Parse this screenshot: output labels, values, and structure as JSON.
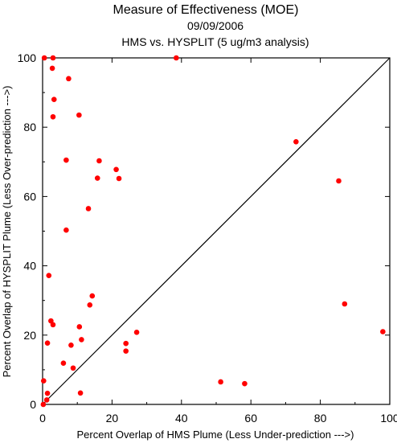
{
  "chart_data": {
    "type": "scatter",
    "title": "Measure of Effectiveness (MOE)",
    "date": "09/09/2006",
    "subtitle": "HMS vs. HYSPLIT  (5 ug/m3 analysis)",
    "xlabel": "Percent Overlap of HMS Plume (Less Under-prediction --->)",
    "ylabel": "Percent Overlap of HYSPLIT Plume (Less Over-prediction --->)",
    "xlim": [
      0,
      100
    ],
    "ylim": [
      0,
      100
    ],
    "xticks": [
      0,
      20,
      40,
      60,
      80,
      100
    ],
    "yticks": [
      0,
      20,
      40,
      60,
      80,
      100
    ],
    "reference_line": "y = x",
    "point_color": "#ff0000",
    "points": [
      {
        "x": 0.5,
        "y": 100
      },
      {
        "x": 3.0,
        "y": 100
      },
      {
        "x": 38.5,
        "y": 100
      },
      {
        "x": 2.8,
        "y": 97
      },
      {
        "x": 7.5,
        "y": 94
      },
      {
        "x": 3.3,
        "y": 88
      },
      {
        "x": 3.0,
        "y": 83
      },
      {
        "x": 10.5,
        "y": 83.5
      },
      {
        "x": 73.0,
        "y": 75.8
      },
      {
        "x": 6.8,
        "y": 70.5
      },
      {
        "x": 16.3,
        "y": 70.3
      },
      {
        "x": 21.2,
        "y": 67.8
      },
      {
        "x": 15.8,
        "y": 65.3
      },
      {
        "x": 22.0,
        "y": 65.2
      },
      {
        "x": 85.3,
        "y": 64.5
      },
      {
        "x": 13.2,
        "y": 56.5
      },
      {
        "x": 6.8,
        "y": 50.3
      },
      {
        "x": 1.8,
        "y": 37.2
      },
      {
        "x": 14.3,
        "y": 31.3
      },
      {
        "x": 13.6,
        "y": 28.7
      },
      {
        "x": 87.0,
        "y": 29.0
      },
      {
        "x": 2.4,
        "y": 24.1
      },
      {
        "x": 3.0,
        "y": 23.0
      },
      {
        "x": 10.6,
        "y": 22.4
      },
      {
        "x": 27.1,
        "y": 20.8
      },
      {
        "x": 98.0,
        "y": 21.0
      },
      {
        "x": 11.2,
        "y": 18.7
      },
      {
        "x": 1.4,
        "y": 17.7
      },
      {
        "x": 8.2,
        "y": 17.1
      },
      {
        "x": 24.0,
        "y": 17.6
      },
      {
        "x": 24.0,
        "y": 15.4
      },
      {
        "x": 6.0,
        "y": 11.9
      },
      {
        "x": 8.8,
        "y": 10.5
      },
      {
        "x": 0.3,
        "y": 6.8
      },
      {
        "x": 51.3,
        "y": 6.5
      },
      {
        "x": 58.2,
        "y": 6.0
      },
      {
        "x": 1.4,
        "y": 3.2
      },
      {
        "x": 10.9,
        "y": 3.3
      },
      {
        "x": 1.2,
        "y": 1.3
      },
      {
        "x": 0.2,
        "y": 0.0
      }
    ]
  }
}
